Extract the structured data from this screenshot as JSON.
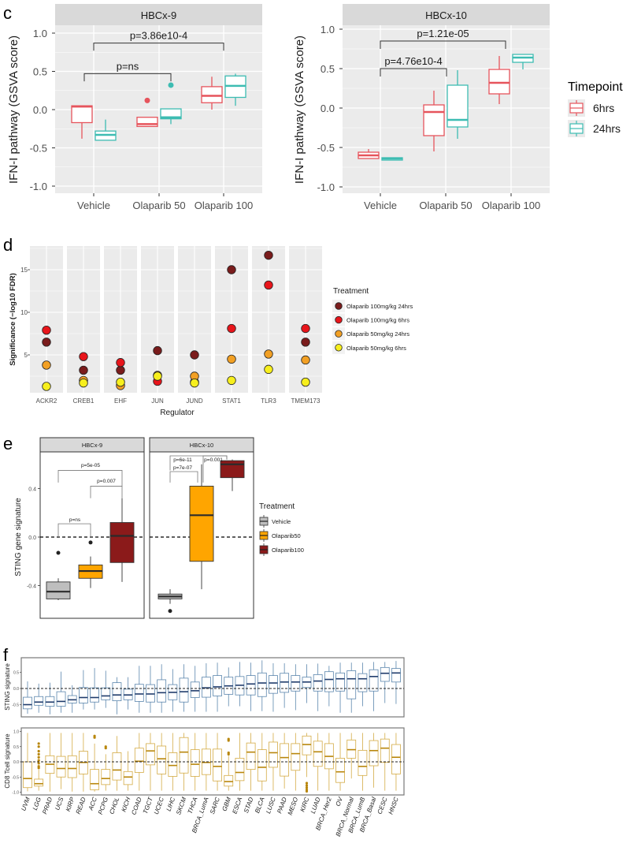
{
  "chart_data": [
    {
      "panel_label": "c",
      "type": "box",
      "title": "HBCx-9",
      "ylabel": "IFN-I pathway (GSVA score)",
      "categories": [
        "Vehicle",
        "Olaparib 50",
        "Olaparib 100"
      ],
      "yticks": [
        "1.0",
        "0.5",
        "0.0",
        "-0.5",
        "-1.0"
      ],
      "ytick_values": [
        1,
        0.5,
        0,
        -0.5,
        -1
      ],
      "ylim": [
        -1.1,
        1.15
      ],
      "series": [
        {
          "name": "6hrs",
          "color": "#e6545c",
          "boxes": [
            [
              -0.38,
              -0.17,
              0.04,
              0.05,
              0.05
            ],
            [
              -0.22,
              -0.22,
              -0.19,
              -0.1,
              -0.1
            ],
            [
              0.0,
              0.09,
              0.18,
              0.3,
              0.43
            ]
          ],
          "outliers": [
            [],
            [
              0.12
            ],
            []
          ]
        },
        {
          "name": "24hrs",
          "color": "#3dbcb2",
          "boxes": [
            [
              -0.4,
              -0.4,
              -0.33,
              -0.28,
              -0.13
            ],
            [
              -0.19,
              -0.12,
              -0.1,
              0.01,
              0.01
            ],
            [
              0.05,
              0.16,
              0.31,
              0.44,
              0.47
            ]
          ],
          "outliers": [
            [],
            [
              0.32
            ],
            []
          ]
        }
      ],
      "annotations": [
        {
          "text": "p=ns",
          "from": "Vehicle",
          "to": "Olaparib 50",
          "y": 0.47
        },
        {
          "text": "p=3.86e10-4",
          "from": "Vehicle",
          "to": "Olaparib 100",
          "y": 0.87
        }
      ]
    },
    {
      "type": "box",
      "title": "HBCx-10",
      "ylabel": "IFN-I pathway (GSVA score)",
      "categories": [
        "Vehicle",
        "Olaparib 50",
        "Olaparib 100"
      ],
      "yticks": [
        "1.0",
        "0.5",
        "0.0",
        "-0.5",
        "-1.0"
      ],
      "ytick_values": [
        1,
        0.5,
        0,
        -0.5,
        -1
      ],
      "ylim": [
        -1.1,
        1.15
      ],
      "series": [
        {
          "name": "6hrs",
          "color": "#e6545c",
          "boxes": [
            [
              -0.64,
              -0.64,
              -0.6,
              -0.56,
              -0.52
            ],
            [
              -0.55,
              -0.35,
              -0.05,
              0.04,
              0.22
            ],
            [
              0.05,
              0.18,
              0.32,
              0.49,
              0.66
            ]
          ],
          "outliers": [
            [],
            [],
            []
          ]
        },
        {
          "name": "24hrs",
          "color": "#3dbcb2",
          "boxes": [
            [
              -0.66,
              -0.66,
              -0.64,
              -0.63,
              -0.63
            ],
            [
              -0.39,
              -0.24,
              -0.15,
              0.29,
              0.48
            ],
            [
              0.49,
              0.58,
              0.64,
              0.68,
              0.68
            ]
          ],
          "outliers": [
            [],
            [],
            []
          ]
        }
      ],
      "annotations": [
        {
          "text": "p=4.76e10-4",
          "from": "Vehicle",
          "to": "Olaparib 50",
          "y": 0.5
        },
        {
          "text": "p=1.21e-05",
          "from": "Vehicle",
          "to": "Olaparib 100",
          "y": 0.85
        }
      ],
      "legend": {
        "title": "Timepoint",
        "items": [
          "6hrs",
          "24hrs"
        ]
      }
    },
    {
      "panel_label": "d",
      "type": "scatter",
      "xlabel": "Regulator",
      "ylabel": "Significance (−log10 FDR)",
      "categories": [
        "ACKR2",
        "CREB1",
        "EHF",
        "JUN",
        "JUND",
        "STAT1",
        "TLR3",
        "TMEM173"
      ],
      "yticks": [
        "5",
        "10",
        "15"
      ],
      "ytick_values": [
        5,
        10,
        15
      ],
      "ylim": [
        0.5,
        17.7
      ],
      "legend_title": "Treatment",
      "series": [
        {
          "name": "Olaparib 100mg/kg 24hrs",
          "color": "#7a1c1c",
          "values": [
            6.5,
            3.2,
            3.2,
            5.5,
            5.0,
            15.0,
            16.7,
            6.5
          ]
        },
        {
          "name": "Olaparib 100mg/kg 6hrs",
          "color": "#e8151b",
          "values": [
            7.9,
            4.8,
            4.1,
            1.9,
            1.8,
            8.1,
            13.2,
            8.1
          ]
        },
        {
          "name": "Olaparib 50mg/kg 24hrs",
          "color": "#f2a024",
          "values": [
            3.8,
            2.0,
            1.4,
            2.6,
            2.5,
            4.5,
            5.1,
            4.4
          ]
        },
        {
          "name": "Olaparib 50mg/kg 6hrs",
          "color": "#f7ef1d",
          "values": [
            1.3,
            1.7,
            1.8,
            2.5,
            1.7,
            2.0,
            3.3,
            1.8
          ]
        }
      ]
    },
    {
      "panel_label": "e",
      "type": "box",
      "ylabel": "STING gene signature",
      "yticks": [
        "0.4",
        "0.0",
        "-0.4"
      ],
      "ytick_values": [
        0.4,
        0,
        -0.4
      ],
      "ylim": [
        -0.67,
        0.7
      ],
      "reference_line": 0,
      "legend_title": "Treatment",
      "groups": [
        {
          "name": "Vehicle",
          "color": "#bebebe"
        },
        {
          "name": "Olaparib50",
          "color": "#ffa500"
        },
        {
          "name": "Olaparib100",
          "color": "#8b1a1a"
        }
      ],
      "facets": [
        {
          "title": "HBCx-9",
          "boxes": [
            [
              -0.52,
              -0.51,
              -0.45,
              -0.37,
              -0.34
            ],
            [
              -0.42,
              -0.34,
              -0.28,
              -0.23,
              -0.16
            ],
            [
              -0.37,
              -0.21,
              0.01,
              0.12,
              0.32
            ]
          ],
          "outliers": [
            [
              -0.13
            ],
            [
              -0.045
            ],
            []
          ],
          "annotations": [
            {
              "text": "p=ns",
              "from": "Vehicle",
              "to": "Olaparib50",
              "y": 0.11
            },
            {
              "text": "p=0.007",
              "from": "Olaparib50",
              "to": "Olaparib100",
              "y": 0.42
            },
            {
              "text": "p=5e-05",
              "from": "Vehicle",
              "to": "Olaparib100",
              "y": 0.55
            }
          ]
        },
        {
          "title": "HBCx-10",
          "boxes": [
            [
              -0.55,
              -0.51,
              -0.49,
              -0.47,
              -0.43
            ],
            [
              -0.43,
              -0.2,
              0.18,
              0.42,
              0.6
            ],
            [
              0.38,
              0.49,
              0.6,
              0.63,
              0.64
            ]
          ],
          "outliers": [
            [
              -0.61
            ],
            [],
            []
          ],
          "annotations": [
            {
              "text": "p=6e-11",
              "from": "Vehicle",
              "to": "Olaparib100",
              "y": 0.67
            },
            {
              "text": "p=7e-07",
              "from": "Vehicle",
              "to": "Olaparib50",
              "y": 0.54
            },
            {
              "text": "p=0.001",
              "from": "Olaparib50",
              "to": "Olaparib100",
              "y": 0.67
            }
          ]
        }
      ]
    },
    {
      "panel_label": "f",
      "type": "box",
      "ylabel": "STING signature",
      "yticks": [
        "0.5",
        "0.0",
        "-0.5"
      ],
      "ytick_values": [
        0.5,
        0,
        -0.5
      ],
      "ylim": [
        -0.88,
        0.95
      ],
      "reference_line": 0,
      "color": "#5b86ad",
      "median_color": "#1f3b6b",
      "boxes": [
        [
          -0.78,
          -0.63,
          -0.5,
          -0.27,
          0.22
        ],
        [
          -0.75,
          -0.52,
          -0.42,
          -0.25,
          0.15
        ],
        [
          -0.8,
          -0.55,
          -0.42,
          -0.25,
          0.18
        ],
        [
          -0.75,
          -0.55,
          -0.4,
          -0.1,
          0.52
        ],
        [
          -0.75,
          -0.45,
          -0.35,
          -0.22,
          0.1
        ],
        [
          -0.65,
          -0.45,
          -0.28,
          0.03,
          0.57
        ],
        [
          -0.65,
          -0.42,
          -0.28,
          0.02,
          0.63
        ],
        [
          -0.6,
          -0.35,
          -0.23,
          0.02,
          0.55
        ],
        [
          -0.8,
          -0.38,
          -0.2,
          0.18,
          0.35
        ],
        [
          -0.65,
          -0.35,
          -0.2,
          -0.02,
          0.35
        ],
        [
          -0.75,
          -0.4,
          -0.17,
          0.13,
          0.7
        ],
        [
          -0.75,
          -0.42,
          -0.17,
          0.12,
          0.7
        ],
        [
          -0.75,
          -0.42,
          -0.13,
          0.27,
          0.75
        ],
        [
          -0.72,
          -0.35,
          -0.12,
          0.12,
          0.6
        ],
        [
          -0.72,
          -0.42,
          -0.1,
          0.32,
          0.75
        ],
        [
          -0.72,
          -0.28,
          -0.07,
          0.2,
          0.7
        ],
        [
          -0.72,
          -0.27,
          0.02,
          0.35,
          0.78
        ],
        [
          -0.72,
          -0.23,
          0.05,
          0.4,
          0.8
        ],
        [
          -0.55,
          -0.18,
          0.08,
          0.35,
          0.65
        ],
        [
          -0.55,
          -0.2,
          0.1,
          0.37,
          0.82
        ],
        [
          -0.7,
          -0.2,
          0.14,
          0.4,
          0.8
        ],
        [
          -0.7,
          -0.25,
          0.17,
          0.48,
          0.87
        ],
        [
          -0.72,
          -0.15,
          0.17,
          0.4,
          0.78
        ],
        [
          -0.6,
          -0.12,
          0.2,
          0.47,
          0.78
        ],
        [
          -0.67,
          -0.08,
          0.2,
          0.4,
          0.75
        ],
        [
          -0.45,
          0.03,
          0.2,
          0.35,
          0.75
        ],
        [
          -0.7,
          -0.08,
          0.23,
          0.43,
          0.77
        ],
        [
          -0.55,
          -0.1,
          0.28,
          0.52,
          0.7
        ],
        [
          -0.75,
          -0.08,
          0.3,
          0.48,
          0.8
        ],
        [
          -0.75,
          -0.32,
          0.3,
          0.55,
          0.8
        ],
        [
          -0.55,
          -0.1,
          0.3,
          0.46,
          0.8
        ],
        [
          -0.7,
          -0.08,
          0.37,
          0.58,
          0.82
        ],
        [
          -0.45,
          0.22,
          0.47,
          0.65,
          0.82
        ],
        [
          -0.48,
          0.2,
          0.48,
          0.62,
          0.85
        ]
      ]
    },
    {
      "type": "box",
      "ylabel": "CD8 Tcell signature",
      "yticks": [
        "1.0",
        "0.5",
        "0.0",
        "-0.5",
        "-1.0"
      ],
      "ytick_values": [
        1,
        0.5,
        0,
        -0.5,
        -1
      ],
      "ylim": [
        -1.09,
        1.11
      ],
      "reference_line": 0,
      "color": "#d4ab45",
      "median_color": "#b8860b",
      "categories": [
        "UVM",
        "LGG",
        "PRAD",
        "UCS",
        "KIRP",
        "READ",
        "ACC",
        "PCPG",
        "CHOL",
        "KICH",
        "COAD",
        "TGCT",
        "UCEC",
        "LIHC",
        "SKCM",
        "THCA",
        "BRCA_LumA",
        "SARC",
        "GBM",
        "ESCA",
        "STAD",
        "BLCA",
        "LUSC",
        "PAAD",
        "MESO",
        "KIRC",
        "LUAD",
        "BRCA_Her2",
        "OV",
        "BRCA_Normal",
        "BRCA_LumB",
        "BRCA_Basal",
        "CESC",
        "HNSC"
      ],
      "boxes": [
        [
          -0.97,
          -0.85,
          -0.55,
          0.0,
          0.95
        ],
        [
          -0.95,
          -0.8,
          -0.72,
          -0.57,
          -0.25
        ],
        [
          -0.98,
          -0.38,
          -0.08,
          0.2,
          0.95
        ],
        [
          -0.9,
          -0.5,
          -0.22,
          0.18,
          0.95
        ],
        [
          -0.98,
          -0.52,
          -0.22,
          0.2,
          0.95
        ],
        [
          -0.98,
          -0.4,
          -0.02,
          0.35,
          0.95
        ],
        [
          -0.98,
          -0.92,
          -0.72,
          -0.25,
          0.6
        ],
        [
          -0.95,
          -0.75,
          -0.55,
          -0.25,
          0.25
        ],
        [
          -0.95,
          -0.6,
          -0.27,
          0.3,
          0.85
        ],
        [
          -0.95,
          -0.75,
          -0.5,
          -0.32,
          0.35
        ],
        [
          -0.95,
          -0.35,
          0.02,
          0.45,
          0.95
        ],
        [
          -0.95,
          -0.1,
          0.36,
          0.6,
          0.95
        ],
        [
          -0.95,
          -0.4,
          0.1,
          0.52,
          0.95
        ],
        [
          -0.95,
          -0.48,
          -0.12,
          0.3,
          0.95
        ],
        [
          -0.95,
          -0.37,
          0.32,
          0.8,
          0.95
        ],
        [
          -0.95,
          -0.48,
          -0.08,
          0.4,
          0.95
        ],
        [
          -0.95,
          -0.42,
          -0.02,
          0.42,
          0.95
        ],
        [
          -0.95,
          -0.63,
          -0.15,
          0.42,
          0.95
        ],
        [
          -0.95,
          -0.8,
          -0.65,
          -0.45,
          0.2
        ],
        [
          -0.95,
          -0.62,
          -0.35,
          0.12,
          0.95
        ],
        [
          -0.95,
          -0.25,
          0.32,
          0.62,
          0.95
        ],
        [
          -0.95,
          -0.63,
          -0.18,
          0.4,
          0.95
        ],
        [
          -0.95,
          -0.18,
          0.3,
          0.65,
          0.95
        ],
        [
          -0.88,
          -0.47,
          0.14,
          0.6,
          0.95
        ],
        [
          -0.95,
          -0.28,
          0.27,
          0.6,
          0.95
        ],
        [
          -0.5,
          0.23,
          0.57,
          0.85,
          0.95
        ],
        [
          -0.95,
          -0.15,
          0.33,
          0.68,
          0.95
        ],
        [
          -0.95,
          -0.23,
          0.18,
          0.6,
          0.95
        ],
        [
          -0.95,
          -0.68,
          -0.33,
          0.12,
          0.95
        ],
        [
          -0.55,
          0.12,
          0.4,
          0.72,
          0.95
        ],
        [
          -0.95,
          -0.45,
          -0.15,
          0.38,
          0.95
        ],
        [
          -0.85,
          -0.13,
          0.37,
          0.7,
          0.95
        ],
        [
          -0.95,
          -0.02,
          0.45,
          0.75,
          0.95
        ],
        [
          -0.95,
          -0.4,
          0.15,
          0.57,
          0.95
        ]
      ],
      "outliers": {
        "LGG": [
          0.6,
          0.5,
          0.35,
          0.25,
          0.15,
          0.05,
          -0.05,
          -0.15,
          -0.2
        ],
        "ACC": [
          0.8,
          0.85
        ],
        "PCPG": [
          0.45,
          0.5
        ],
        "GBM": [
          0.25,
          0.3,
          0.7,
          0.75
        ],
        "KIRC": [
          -0.7,
          -0.78,
          -0.85,
          -0.92,
          -0.97
        ]
      }
    }
  ]
}
